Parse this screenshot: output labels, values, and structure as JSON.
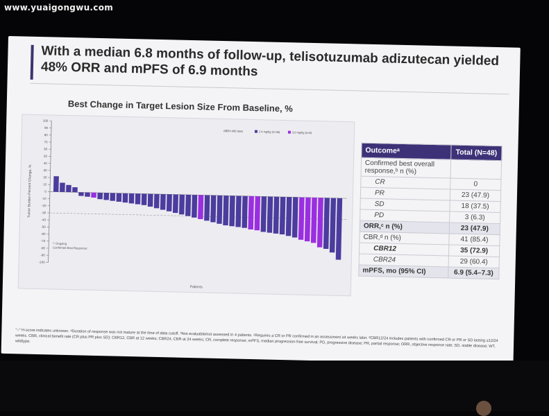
{
  "watermark": "www.yuaigongwu.com",
  "slide": {
    "title": "With a median 6.8 months of follow-up, telisotuzumab adizutecan yielded 48% ORR and mPFS of 6.9 months",
    "chart_heading": "Best Change in Target Lesion Size From Baseline, %",
    "footnote": "\"–\" H-score indicates unknown. ᵃDuration of response was not mature at the time of data cutoff. ᵇNot evaluable/not assessed in 4 patients. ᶜRequires a CR or PR confirmed in an assessment ≥4 weeks later. ᵈCBR12/24 includes patients with confirmed CR or PR or SD lasting ≥12/24 weeks. CBR, clinical benefit rate (CR plus PR plus SD); CBR12, CBR at 12 weeks; CBR24, CBR at 24 weeks; CR, complete response; mPFS, median progression-free survival; PD, progressive disease; PR, partial response; ORR, objective response rate; SD, stable disease; WT, wildtype."
  },
  "table": {
    "header_outcome": "Outcomeᵃ",
    "header_total": "Total (N=48)",
    "rows": [
      {
        "label": "Confirmed best overall response,ᵇ n (%)",
        "value": "",
        "style": "plain"
      },
      {
        "label": "CR",
        "value": "0",
        "style": "indent"
      },
      {
        "label": "PR",
        "value": "23 (47.9)",
        "style": "indent"
      },
      {
        "label": "SD",
        "value": "18 (37.5)",
        "style": "indent"
      },
      {
        "label": "PD",
        "value": "3 (6.3)",
        "style": "indent"
      },
      {
        "label": "ORR,ᶜ n (%)",
        "value": "23 (47.9)",
        "style": "highlight"
      },
      {
        "label": "CBR,ᵈ n (%)",
        "value": "41 (85.4)",
        "style": "plain"
      },
      {
        "label": "CBR12",
        "value": "35 (72.9)",
        "style": "indent-bold"
      },
      {
        "label": "CBR24",
        "value": "29 (60.4)",
        "style": "indent"
      },
      {
        "label": "mPFS, mo (95% CI)",
        "value": "6.9 (5.4–7.3)",
        "style": "highlight"
      }
    ]
  },
  "colors": {
    "bar_24": "#4b3c9e",
    "bar_30": "#9a2fe0",
    "bar_plain": "#5c4fa8",
    "header": "#3d3278"
  },
  "chart_data": {
    "type": "bar",
    "xlabel": "Patients",
    "ylabel": "Tumor Burden Percent Change, %",
    "ylim": [
      -100,
      100
    ],
    "yticks": [
      100,
      90,
      80,
      70,
      60,
      50,
      40,
      30,
      20,
      10,
      0,
      -10,
      -20,
      -30,
      -40,
      -50,
      -60,
      -70,
      -80,
      -90,
      -100
    ],
    "reference_line": -30,
    "legend_title": "ABBV-400 dose",
    "legend": [
      {
        "name": "2.4 mg/kg (n=36)",
        "color": "#4b3c9e"
      },
      {
        "name": "3.0 mg/kg (n=8)",
        "color": "#9a2fe0"
      }
    ],
    "annotation": [
      "*: Ongoing",
      "Confirmed Best Response:"
    ],
    "values": [
      22,
      13,
      10,
      7,
      -5,
      -6,
      -7,
      -9,
      -10,
      -11,
      -12,
      -13,
      -14,
      -15,
      -16,
      -18,
      -20,
      -22,
      -24,
      -26,
      -28,
      -30,
      -32,
      -34,
      -36,
      -38,
      -40,
      -42,
      -43,
      -44,
      -45,
      -47,
      -48,
      -50,
      -51,
      -52,
      -53,
      -55,
      -57,
      -60,
      -62,
      -64,
      -70,
      -72,
      -77,
      -87
    ],
    "dose_30_indices": [
      6,
      23,
      31,
      32,
      39,
      40,
      41,
      42
    ]
  }
}
